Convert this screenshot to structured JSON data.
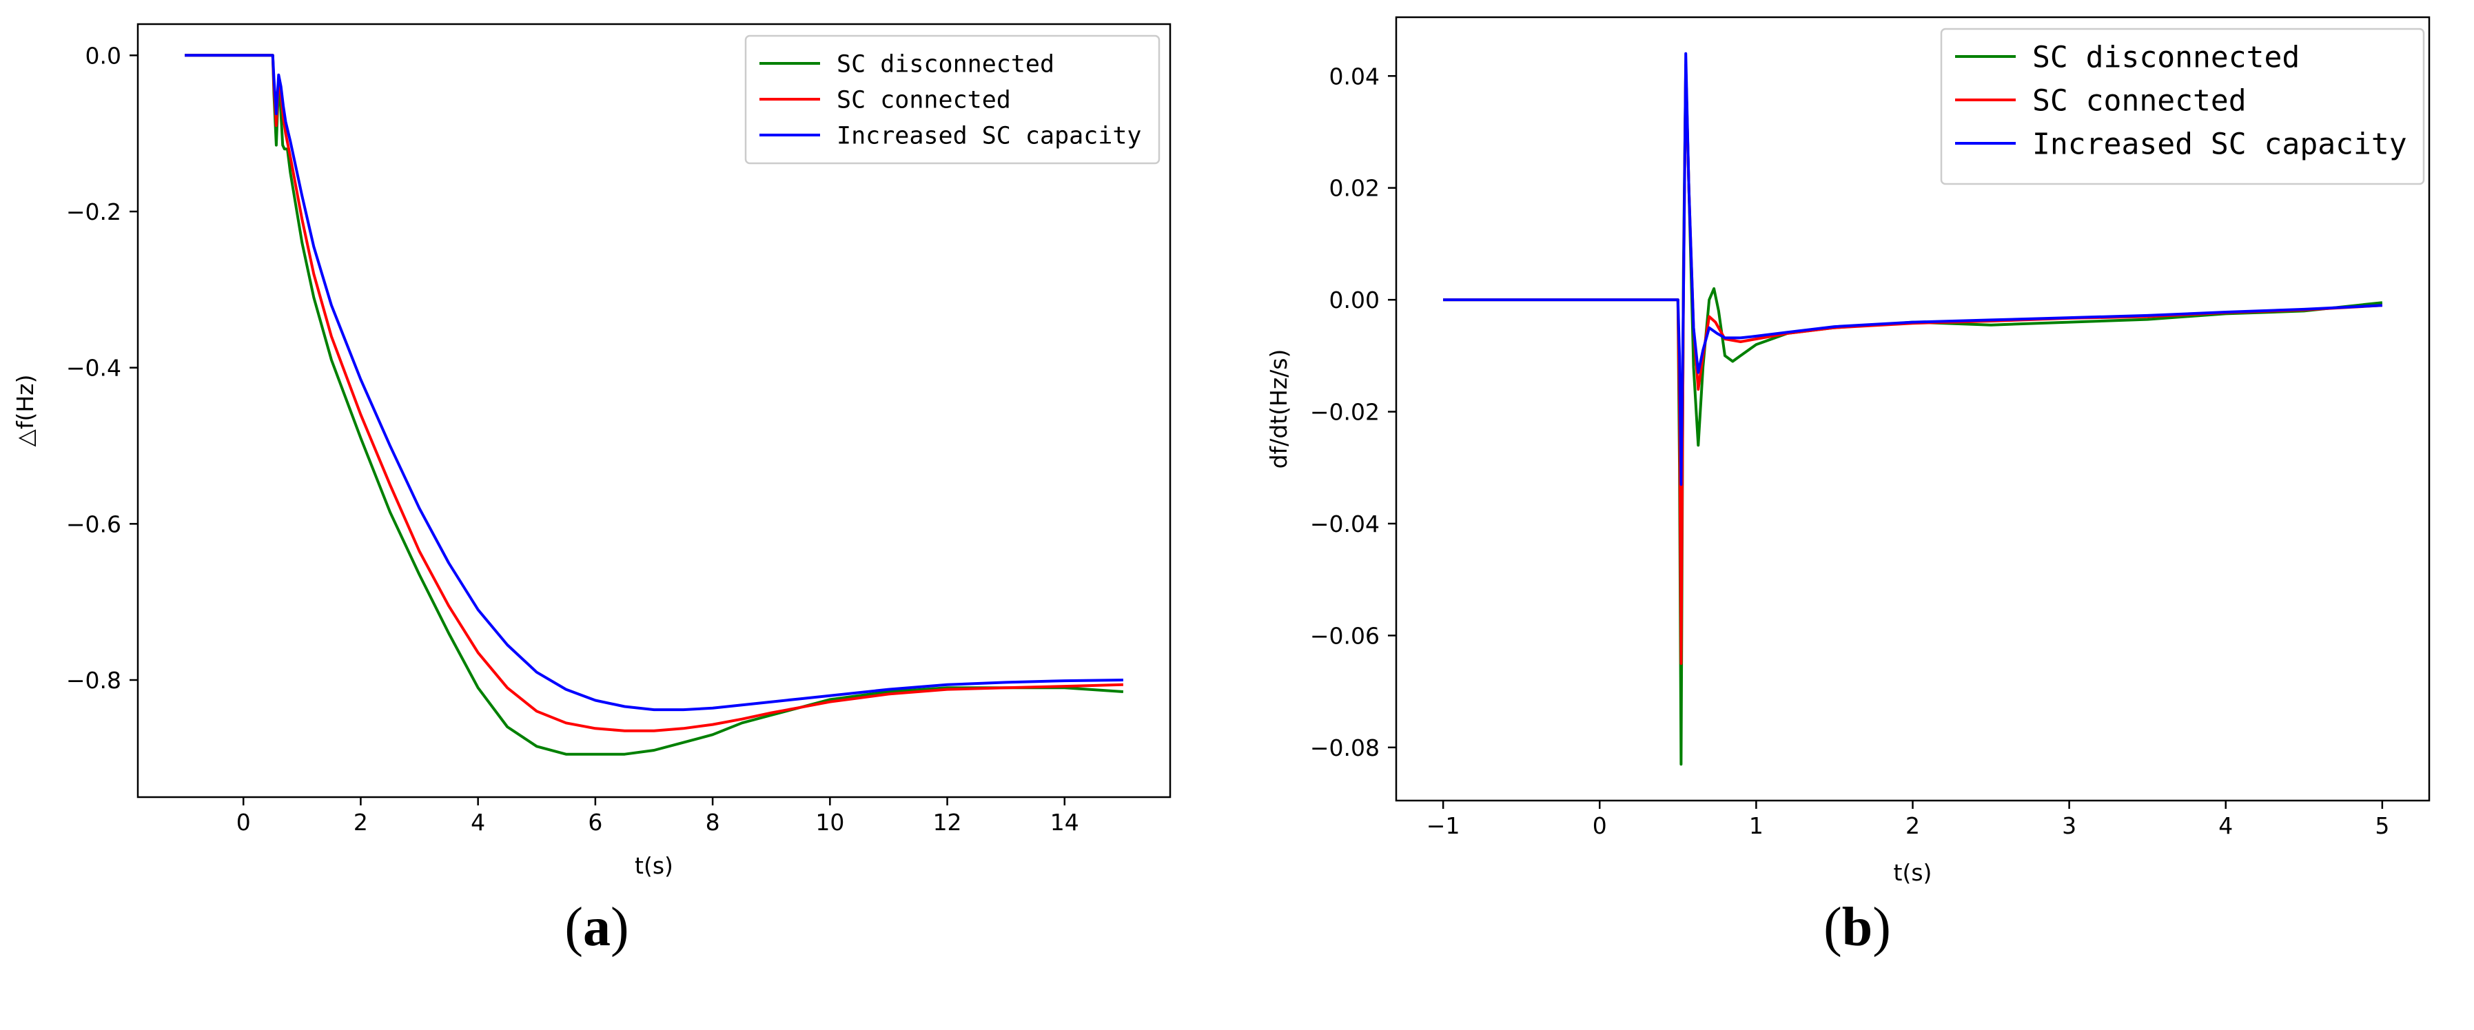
{
  "colors": {
    "sc_disconnected": "#008000",
    "sc_connected": "#ff0000",
    "increased_sc_capacity": "#0000ff"
  },
  "chart_data": [
    {
      "type": "line",
      "panel": "a",
      "xlabel": "t(s)",
      "ylabel": "△f(Hz)",
      "xlim": [
        -1.8,
        15.8
      ],
      "ylim": [
        -0.95,
        0.04
      ],
      "xticks": [
        0,
        2,
        4,
        6,
        8,
        10,
        12,
        14
      ],
      "yticks": [
        0.0,
        -0.2,
        -0.4,
        -0.6,
        -0.8
      ],
      "ytick_labels": [
        "0.0",
        "−0.2",
        "−0.4",
        "−0.6",
        "−0.8"
      ],
      "xtick_labels": [
        "0",
        "2",
        "4",
        "6",
        "8",
        "10",
        "12",
        "14"
      ],
      "grid": false,
      "legend": "top-right",
      "series": [
        {
          "name": "SC disconnected",
          "x": [
            -1,
            0.5,
            0.52,
            0.56,
            0.6,
            0.63,
            0.67,
            0.7,
            0.75,
            0.8,
            1.0,
            1.2,
            1.5,
            2.0,
            2.5,
            3.0,
            3.5,
            4.0,
            4.5,
            5.0,
            5.5,
            6.0,
            6.5,
            7.0,
            7.5,
            8.0,
            8.5,
            9.0,
            9.5,
            10.0,
            11.0,
            12.0,
            13.0,
            14.0,
            15.0
          ],
          "y": [
            0,
            0,
            -0.05,
            -0.115,
            -0.035,
            -0.06,
            -0.115,
            -0.12,
            -0.12,
            -0.15,
            -0.24,
            -0.31,
            -0.39,
            -0.49,
            -0.585,
            -0.665,
            -0.74,
            -0.81,
            -0.86,
            -0.885,
            -0.895,
            -0.895,
            -0.895,
            -0.89,
            -0.88,
            -0.87,
            -0.855,
            -0.845,
            -0.835,
            -0.825,
            -0.815,
            -0.81,
            -0.81,
            -0.81,
            -0.815
          ]
        },
        {
          "name": "SC connected",
          "x": [
            -1,
            0.5,
            0.52,
            0.56,
            0.6,
            0.64,
            0.68,
            0.72,
            0.8,
            1.0,
            1.2,
            1.5,
            2.0,
            2.5,
            3.0,
            3.5,
            4.0,
            4.5,
            5.0,
            5.5,
            6.0,
            6.5,
            7.0,
            7.5,
            8.0,
            8.5,
            9.0,
            9.5,
            10.0,
            11.0,
            12.0,
            13.0,
            14.0,
            15.0
          ],
          "y": [
            0,
            0,
            -0.04,
            -0.09,
            -0.03,
            -0.05,
            -0.08,
            -0.1,
            -0.13,
            -0.21,
            -0.28,
            -0.36,
            -0.46,
            -0.55,
            -0.635,
            -0.705,
            -0.765,
            -0.81,
            -0.84,
            -0.855,
            -0.862,
            -0.865,
            -0.865,
            -0.862,
            -0.857,
            -0.85,
            -0.842,
            -0.835,
            -0.828,
            -0.818,
            -0.812,
            -0.81,
            -0.808,
            -0.806
          ]
        },
        {
          "name": "Increased SC capacity",
          "x": [
            -1,
            0.5,
            0.52,
            0.56,
            0.6,
            0.64,
            0.68,
            0.72,
            0.8,
            1.0,
            1.2,
            1.5,
            2.0,
            2.5,
            3.0,
            3.5,
            4.0,
            4.5,
            5.0,
            5.5,
            6.0,
            6.5,
            7.0,
            7.5,
            8.0,
            8.5,
            9.0,
            9.5,
            10.0,
            11.0,
            12.0,
            13.0,
            14.0,
            15.0
          ],
          "y": [
            0,
            0,
            -0.03,
            -0.075,
            -0.025,
            -0.04,
            -0.065,
            -0.085,
            -0.11,
            -0.18,
            -0.245,
            -0.32,
            -0.415,
            -0.5,
            -0.58,
            -0.65,
            -0.71,
            -0.755,
            -0.79,
            -0.812,
            -0.826,
            -0.834,
            -0.838,
            -0.838,
            -0.836,
            -0.832,
            -0.828,
            -0.824,
            -0.82,
            -0.812,
            -0.806,
            -0.803,
            -0.801,
            -0.8
          ]
        }
      ]
    },
    {
      "type": "line",
      "panel": "b",
      "xlabel": "t(s)",
      "ylabel": "df/dt(Hz/s)",
      "xlim": [
        -1.3,
        5.3
      ],
      "ylim": [
        -0.0895,
        0.0505
      ],
      "xticks": [
        -1,
        0,
        1,
        2,
        3,
        4,
        5
      ],
      "xtick_labels": [
        "−1",
        "0",
        "1",
        "2",
        "3",
        "4",
        "5"
      ],
      "yticks": [
        0.04,
        0.02,
        0.0,
        -0.02,
        -0.04,
        -0.06,
        -0.08
      ],
      "ytick_labels": [
        "0.04",
        "0.02",
        "0.00",
        "−0.02",
        "−0.04",
        "−0.06",
        "−0.08"
      ],
      "grid": false,
      "legend": "top-right",
      "series": [
        {
          "name": "SC disconnected",
          "x": [
            -1,
            0.5,
            0.51,
            0.52,
            0.535,
            0.55,
            0.57,
            0.6,
            0.63,
            0.66,
            0.7,
            0.73,
            0.76,
            0.8,
            0.85,
            0.9,
            1.0,
            1.2,
            1.5,
            2.0,
            2.5,
            3.0,
            3.5,
            4.0,
            4.5,
            5.0
          ],
          "y": [
            0,
            0,
            -0.03,
            -0.083,
            0.005,
            0.042,
            0.02,
            -0.012,
            -0.026,
            -0.012,
            0.0,
            0.002,
            -0.002,
            -0.01,
            -0.011,
            -0.01,
            -0.008,
            -0.006,
            -0.005,
            -0.004,
            -0.0045,
            -0.004,
            -0.0035,
            -0.0025,
            -0.002,
            -0.0005
          ]
        },
        {
          "name": "SC connected",
          "x": [
            -1,
            0.5,
            0.51,
            0.52,
            0.535,
            0.55,
            0.57,
            0.6,
            0.63,
            0.66,
            0.7,
            0.74,
            0.8,
            0.9,
            1.0,
            1.2,
            1.5,
            2.0,
            2.5,
            3.0,
            3.5,
            4.0,
            4.5,
            5.0
          ],
          "y": [
            0,
            0,
            -0.02,
            -0.065,
            0.0,
            0.042,
            0.02,
            -0.005,
            -0.016,
            -0.01,
            -0.003,
            -0.004,
            -0.007,
            -0.0075,
            -0.007,
            -0.006,
            -0.005,
            -0.0042,
            -0.0038,
            -0.0033,
            -0.003,
            -0.0023,
            -0.0018,
            -0.001
          ]
        },
        {
          "name": "Increased SC capacity",
          "x": [
            -1,
            0.5,
            0.51,
            0.52,
            0.535,
            0.55,
            0.57,
            0.6,
            0.63,
            0.66,
            0.7,
            0.75,
            0.8,
            0.9,
            1.0,
            1.2,
            1.5,
            2.0,
            2.5,
            3.0,
            3.5,
            4.0,
            4.5,
            5.0
          ],
          "y": [
            0,
            0,
            -0.01,
            -0.033,
            0.0,
            0.044,
            0.02,
            -0.005,
            -0.013,
            -0.009,
            -0.005,
            -0.006,
            -0.0068,
            -0.0068,
            -0.0065,
            -0.0058,
            -0.0048,
            -0.004,
            -0.0036,
            -0.0032,
            -0.0028,
            -0.0022,
            -0.0017,
            -0.001
          ]
        }
      ]
    }
  ],
  "panels": {
    "a": {
      "open": "(",
      "letter": "a",
      "close": ")"
    },
    "b": {
      "open": "(",
      "letter": "b",
      "close": ")"
    }
  }
}
